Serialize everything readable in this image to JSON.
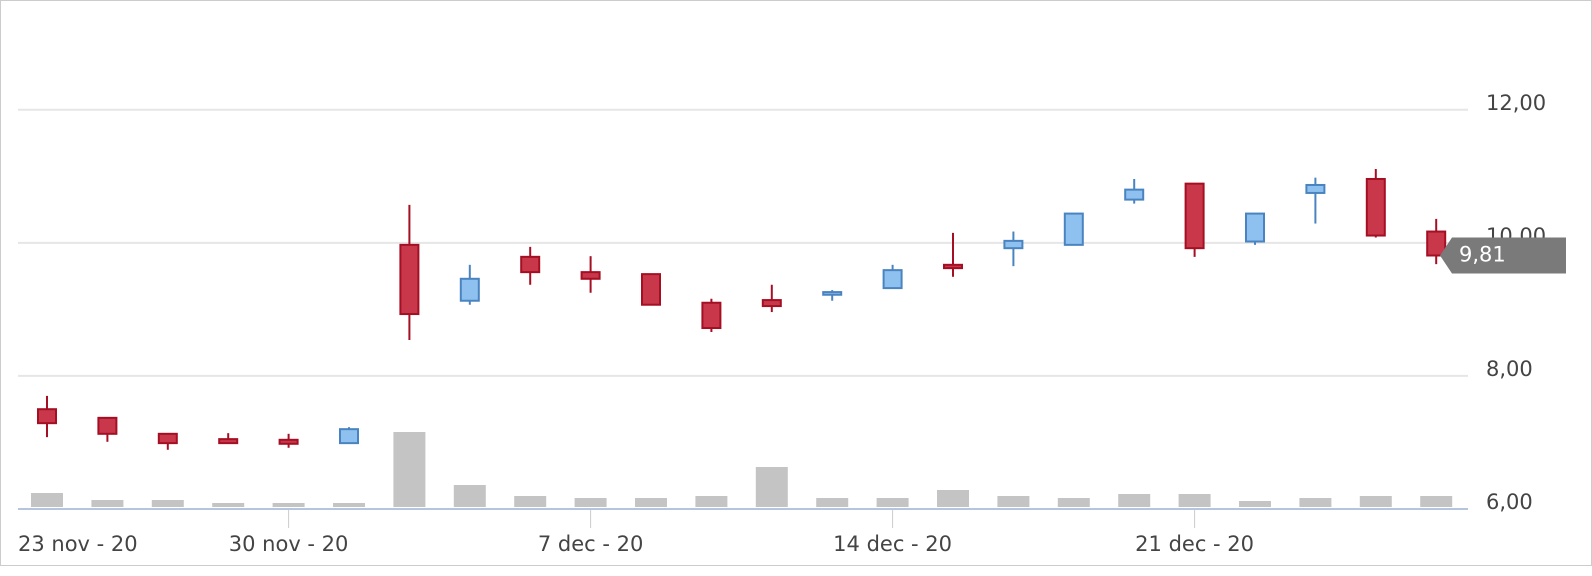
{
  "chart_data": {
    "type": "candlestick",
    "first_label": "23 nov - 20",
    "categories": [
      null,
      null,
      null,
      null,
      "30 nov - 20",
      null,
      null,
      null,
      null,
      "7 dec - 20",
      null,
      null,
      null,
      null,
      "14 dec - 20",
      null,
      null,
      null,
      null,
      "21 dec - 20",
      null,
      null,
      null,
      null
    ],
    "open": [
      7.5,
      7.37,
      7.13,
      7.05,
      7.04,
      6.99,
      9.97,
      9.13,
      9.79,
      9.56,
      9.53,
      9.1,
      9.14,
      9.22,
      9.32,
      9.67,
      9.92,
      9.97,
      10.65,
      10.89,
      10.02,
      10.75,
      10.96,
      10.17
    ],
    "high": [
      7.7,
      7.37,
      7.13,
      7.14,
      7.13,
      7.23,
      10.57,
      9.67,
      9.94,
      9.8,
      9.53,
      9.16,
      9.37,
      9.29,
      9.67,
      10.15,
      10.17,
      10.44,
      10.96,
      10.89,
      10.44,
      10.98,
      11.11,
      10.36
    ],
    "low": [
      7.08,
      7.01,
      6.89,
      6.99,
      6.92,
      6.99,
      8.54,
      9.07,
      9.37,
      9.25,
      9.07,
      8.66,
      8.96,
      9.13,
      9.32,
      9.49,
      9.65,
      9.97,
      10.59,
      9.79,
      9.97,
      10.29,
      10.08,
      9.68
    ],
    "close": [
      7.29,
      7.13,
      6.99,
      6.99,
      6.98,
      7.2,
      8.93,
      9.46,
      9.56,
      9.46,
      9.07,
      8.72,
      9.05,
      9.26,
      9.59,
      9.62,
      10.03,
      10.44,
      10.8,
      9.92,
      10.44,
      10.87,
      10.11,
      9.81
    ],
    "volume": [
      14,
      7,
      7,
      4,
      4,
      4,
      75,
      22,
      11,
      9,
      9,
      11,
      40,
      9,
      9,
      17,
      11,
      9,
      13,
      13,
      6,
      9,
      11,
      11
    ],
    "last_price": 9.81,
    "last_price_label": "9,81",
    "ylim": [
      6,
      13.65
    ],
    "yticks": [
      {
        "value": 6,
        "label": "6,00"
      },
      {
        "value": 8,
        "label": "8,00"
      },
      {
        "value": 10,
        "label": "10,00"
      },
      {
        "value": 12,
        "label": "12,00"
      }
    ],
    "grid": true,
    "up_color": "#8ec1ef",
    "up_edge": "#4a84c0",
    "down_color": "#c8374a",
    "down_edge": "#a50f23",
    "volume_color": "#c4c4c4",
    "last_price_color": "#7a7a7a"
  }
}
